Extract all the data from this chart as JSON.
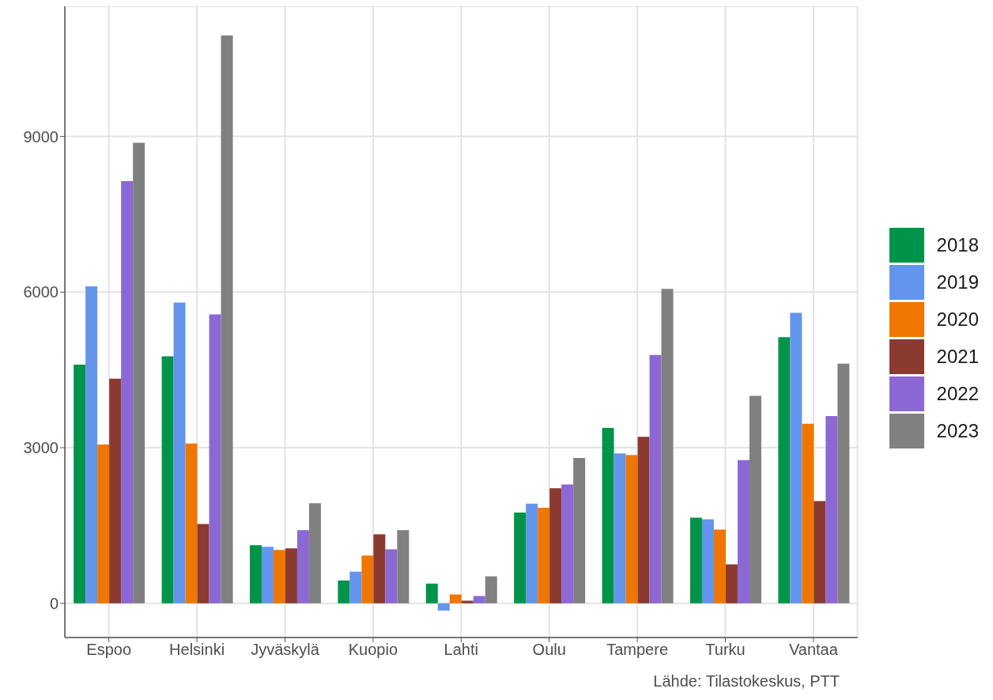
{
  "chart_data": {
    "type": "bar",
    "categories": [
      "Espoo",
      "Helsinki",
      "Jyväskylä",
      "Kuopio",
      "Lahti",
      "Oulu",
      "Tampere",
      "Turku",
      "Vantaa"
    ],
    "series": [
      {
        "name": "2018",
        "color": "#00944a",
        "values": [
          4600,
          4760,
          1120,
          440,
          380,
          1750,
          3380,
          1650,
          5130
        ]
      },
      {
        "name": "2019",
        "color": "#6495ed",
        "values": [
          6110,
          5800,
          1090,
          610,
          -140,
          1920,
          2890,
          1620,
          5600
        ]
      },
      {
        "name": "2020",
        "color": "#ef7600",
        "values": [
          3060,
          3080,
          1030,
          920,
          170,
          1840,
          2860,
          1420,
          3460
        ]
      },
      {
        "name": "2021",
        "color": "#8b3a2f",
        "values": [
          4330,
          1530,
          1060,
          1330,
          50,
          2220,
          3210,
          750,
          1970
        ]
      },
      {
        "name": "2022",
        "color": "#8b68d4",
        "values": [
          8140,
          5570,
          1410,
          1040,
          140,
          2290,
          4790,
          2760,
          3610
        ]
      },
      {
        "name": "2023",
        "color": "#808080",
        "values": [
          8880,
          10950,
          1930,
          1410,
          520,
          2800,
          6060,
          4000,
          4620
        ]
      }
    ],
    "ylim": [
      -660,
      11510
    ],
    "yticks": [
      0,
      3000,
      6000,
      9000
    ],
    "grid": true,
    "legend": "right",
    "annotations": [
      "Lähde: Tilastokeskus, PTT"
    ]
  }
}
